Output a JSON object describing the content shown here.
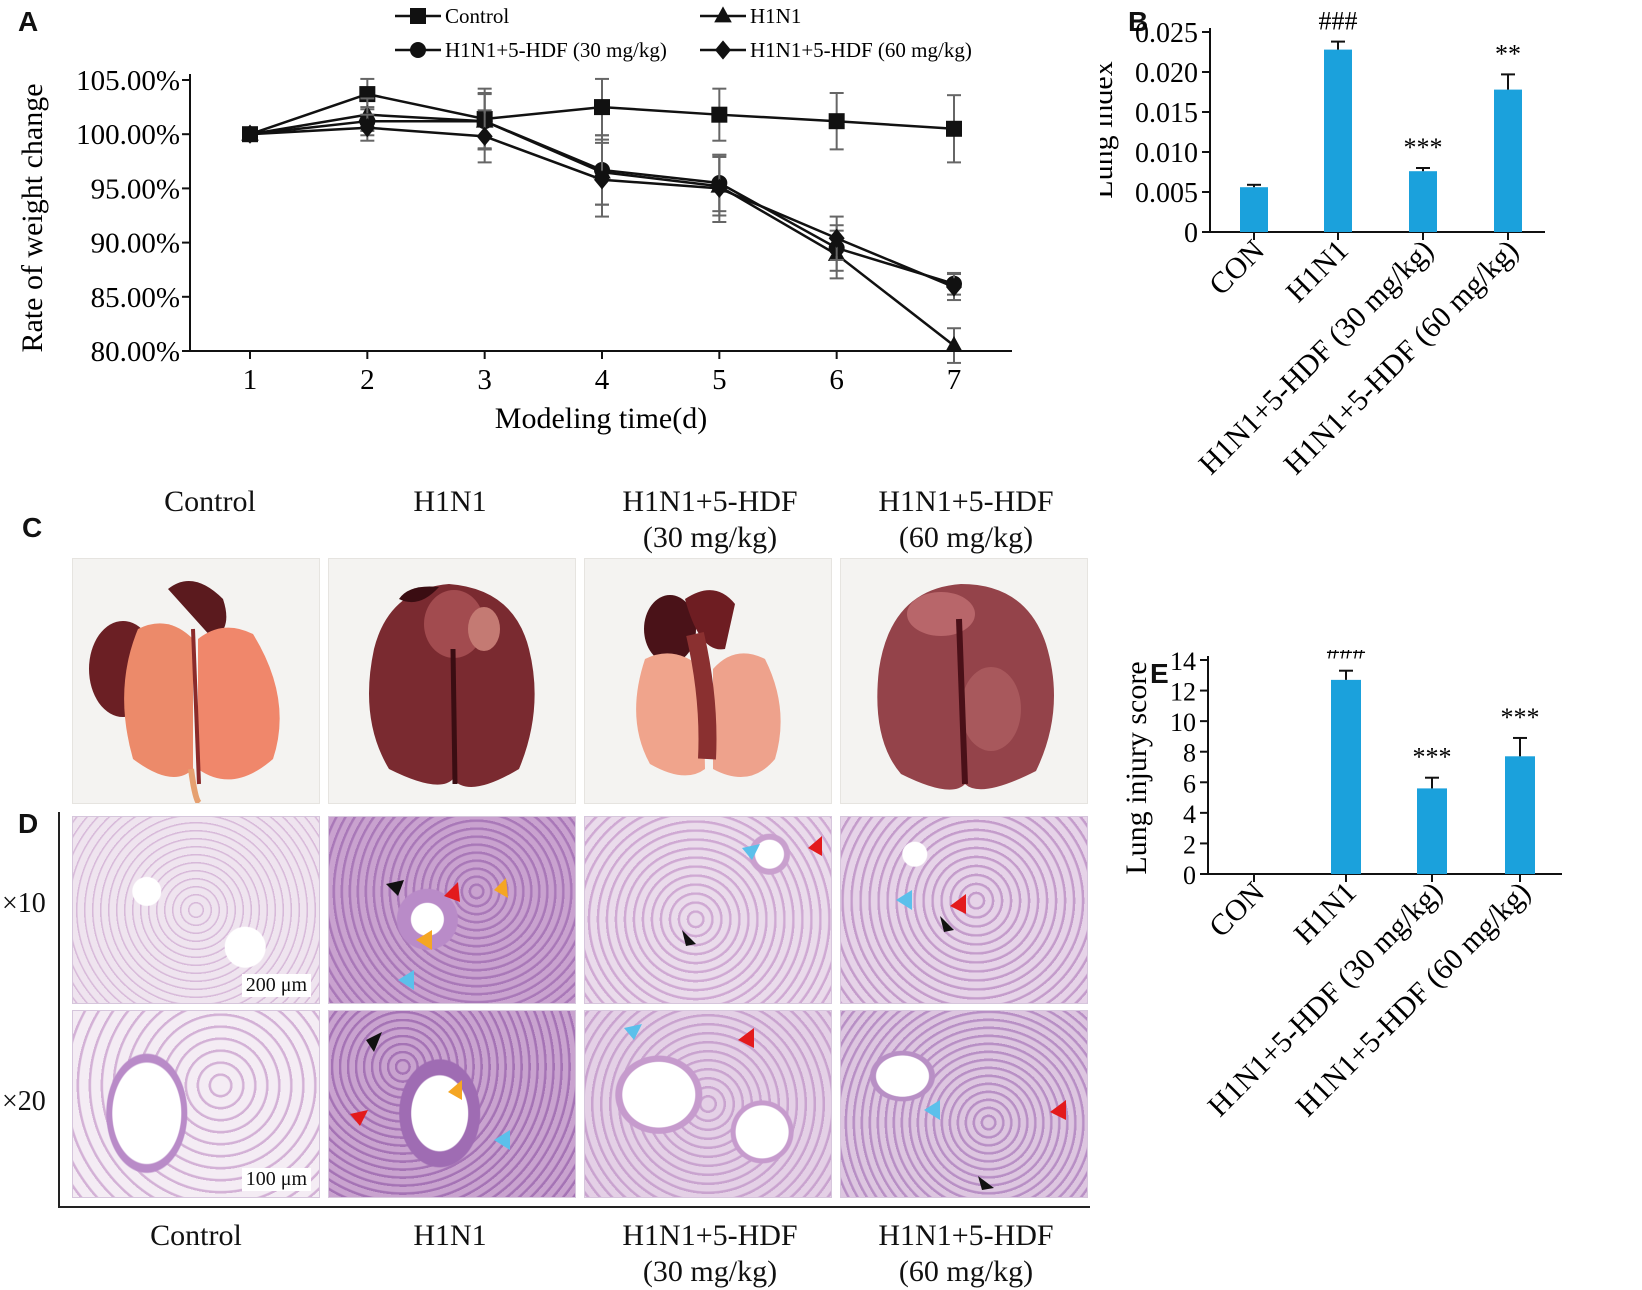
{
  "panels": {
    "a": "A",
    "b": "B",
    "c": "C",
    "d": "D",
    "e": "E"
  },
  "colors": {
    "bar": "#1ba1dc",
    "line": "#1a1a1a",
    "lung_normal": "#e8795f",
    "lung_dark": "#6a1f22",
    "tissue": "#d9b6db"
  },
  "chart_data": [
    {
      "id": "A",
      "type": "line",
      "xlabel": "Modeling time(d)",
      "ylabel": "Rate of weight change",
      "x": [
        1,
        2,
        3,
        4,
        5,
        6,
        7
      ],
      "xticks": [
        "1",
        "2",
        "3",
        "4",
        "5",
        "6",
        "7"
      ],
      "yticks": [
        "80.00%",
        "85.00%",
        "90.00%",
        "95.00%",
        "100.00%",
        "105.00%"
      ],
      "ylim": [
        80,
        105
      ],
      "legend_position": "top",
      "series": [
        {
          "name": "Control",
          "marker": "square",
          "values": [
            100,
            103.7,
            101.4,
            102.5,
            101.8,
            101.2,
            100.5
          ],
          "error": [
            0,
            1.4,
            2.8,
            2.6,
            2.4,
            2.6,
            3.1
          ]
        },
        {
          "name": "H1N1",
          "marker": "triangle",
          "values": [
            100,
            101.8,
            101.2,
            96.5,
            95.2,
            88.9,
            80.5
          ],
          "error": [
            0,
            1.5,
            2.6,
            3.0,
            2.7,
            2.2,
            1.6
          ]
        },
        {
          "name": "H1N1+5-HDF (30 mg/kg)",
          "marker": "circle",
          "values": [
            100,
            101.2,
            101.2,
            96.7,
            95.5,
            89.5,
            86.2
          ],
          "error": [
            0,
            1.3,
            2.5,
            3.2,
            2.6,
            2.1,
            1.0
          ]
        },
        {
          "name": "H1N1+5-HDF (60 mg/kg)",
          "marker": "diamond",
          "values": [
            100,
            100.6,
            99.8,
            95.8,
            95.0,
            90.4,
            85.9
          ],
          "error": [
            0,
            1.2,
            2.4,
            3.4,
            3.1,
            2.0,
            1.2
          ]
        }
      ]
    },
    {
      "id": "B",
      "type": "bar",
      "ylabel": "Lung index",
      "categories": [
        "CON",
        "H1N1",
        "H1N1+5-HDF (30 mg/kg)",
        "H1N1+5-HDF (60 mg/kg)"
      ],
      "values": [
        0.0056,
        0.0228,
        0.0076,
        0.0178
      ],
      "error": [
        0.0003,
        0.001,
        0.0004,
        0.0019
      ],
      "annotations": [
        "",
        "###",
        "***",
        "**"
      ],
      "yticks": [
        "0",
        "0.005",
        "0.010",
        "0.015",
        "0.020",
        "0.025"
      ],
      "ylim": [
        0,
        0.025
      ]
    },
    {
      "id": "E",
      "type": "bar",
      "ylabel": "Lung injury score",
      "categories": [
        "CON",
        "H1N1",
        "H1N1+5-HDF (30 mg/kg)",
        "H1N1+5-HDF (60 mg/kg)"
      ],
      "values": [
        0,
        12.7,
        5.6,
        7.7
      ],
      "error": [
        0,
        0.6,
        0.7,
        1.2
      ],
      "annotations": [
        "",
        "###",
        "***",
        "***"
      ],
      "yticks": [
        "0",
        "2",
        "4",
        "6",
        "8",
        "10",
        "12",
        "14"
      ],
      "ylim": [
        0,
        14
      ]
    }
  ],
  "panel_c": {
    "groups": [
      {
        "line1": "Control",
        "line2": ""
      },
      {
        "line1": "H1N1",
        "line2": ""
      },
      {
        "line1": "H1N1+5-HDF",
        "line2": "(30 mg/kg)"
      },
      {
        "line1": "H1N1+5-HDF",
        "line2": "(60 mg/kg)"
      }
    ]
  },
  "panel_d": {
    "rows": [
      "×10",
      "×20"
    ],
    "scale_10": "200 μm",
    "scale_20": "100 μm",
    "groups": [
      {
        "line1": "Control",
        "line2": ""
      },
      {
        "line1": "H1N1",
        "line2": ""
      },
      {
        "line1": "H1N1+5-HDF",
        "line2": "(30 mg/kg)"
      },
      {
        "line1": "H1N1+5-HDF",
        "line2": "(60 mg/kg)"
      }
    ]
  }
}
